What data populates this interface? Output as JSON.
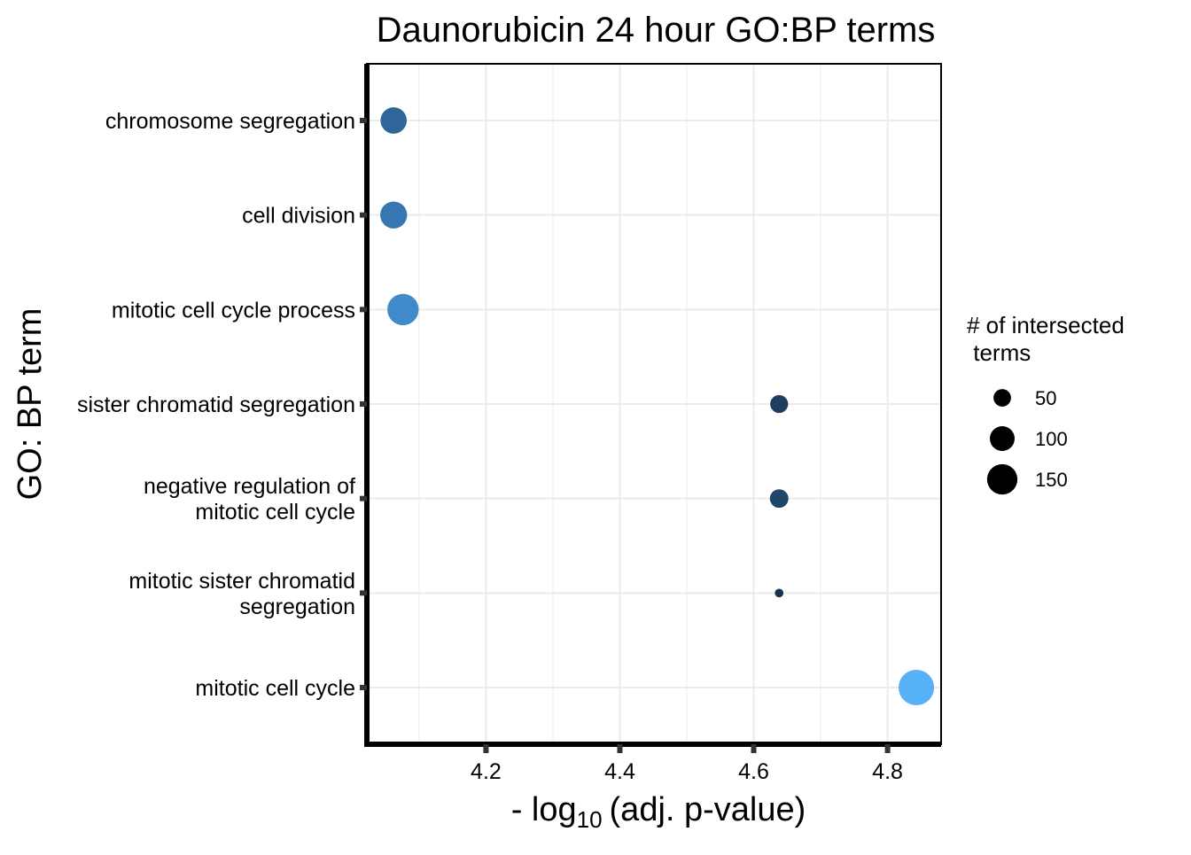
{
  "chart_data": {
    "type": "scatter",
    "title": "Daunorubicin 24 hour GO:BP terms",
    "xlabel_prefix": "- log",
    "xlabel_subscript": "10",
    "xlabel_suffix": "(adj. p-value)",
    "ylabel": "GO: BP term",
    "xlim": [
      4.022,
      4.88
    ],
    "x_ticks": [
      4.2,
      4.4,
      4.6,
      4.8
    ],
    "x_tick_labels": [
      "4.2",
      "4.4",
      "4.6",
      "4.8"
    ],
    "grid": true,
    "categories": [
      [
        "chromosome segregation"
      ],
      [
        "cell division"
      ],
      [
        "mitotic cell cycle process"
      ],
      [
        "sister chromatid segregation"
      ],
      [
        "negative regulation of",
        "mitotic cell cycle"
      ],
      [
        "mitotic sister chromatid",
        "segregation"
      ],
      [
        "mitotic cell cycle"
      ]
    ],
    "points": [
      {
        "x": 4.062,
        "size": 112,
        "color": "#2e6699"
      },
      {
        "x": 4.062,
        "size": 118,
        "color": "#3777b1"
      },
      {
        "x": 4.076,
        "size": 160,
        "color": "#428bcb"
      },
      {
        "x": 4.638,
        "size": 52,
        "color": "#1d3f5f"
      },
      {
        "x": 4.638,
        "size": 56,
        "color": "#204769"
      },
      {
        "x": 4.638,
        "size": 12,
        "color": "#15324f"
      },
      {
        "x": 4.843,
        "size": 205,
        "color": "#56b1f7"
      }
    ],
    "legend": {
      "title_lines": [
        "# of intersected",
        " terms"
      ],
      "placement": "right",
      "entries": [
        {
          "label": "50",
          "size": 50
        },
        {
          "label": "100",
          "size": 100
        },
        {
          "label": "150",
          "size": 150
        }
      ]
    },
    "colors": {
      "low": "#132b43",
      "high": "#56b1f7",
      "grid": "#ebebeb",
      "axis": "#000000",
      "legend_dot": "#000000"
    }
  }
}
